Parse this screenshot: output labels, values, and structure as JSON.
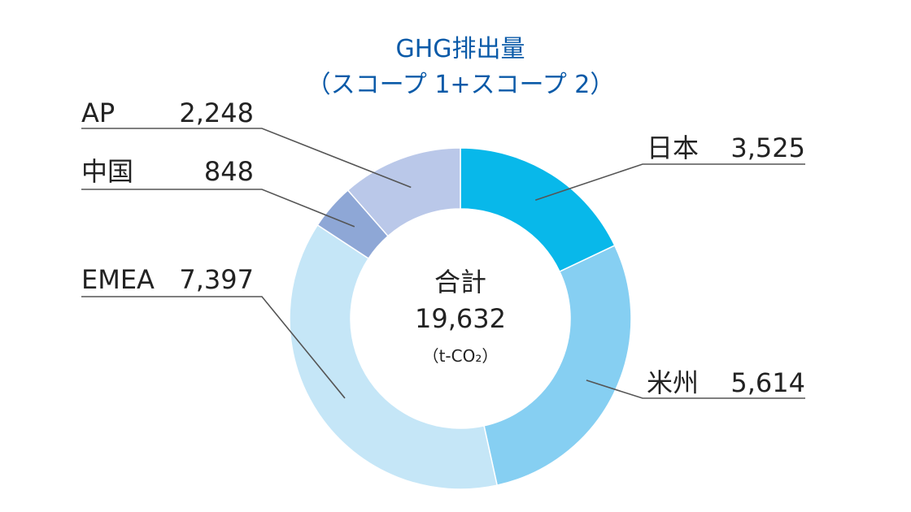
{
  "chart_data": {
    "type": "pie",
    "title": "GHG排出量",
    "subtitle": "（スコープ 1+スコープ 2）",
    "categories": [
      "日本",
      "米州",
      "EMEA",
      "中国",
      "AP"
    ],
    "values": [
      3525,
      5614,
      7397,
      848,
      2248
    ],
    "value_labels": [
      "3,525",
      "5,614",
      "7,397",
      "848",
      "2,248"
    ],
    "colors": [
      "#08b8ea",
      "#86cff2",
      "#c5e6f7",
      "#8ea7d6",
      "#bac8e9"
    ],
    "donut": true,
    "center_label": "合計",
    "center_value": "19,632",
    "center_unit": "（t-CO₂）"
  }
}
